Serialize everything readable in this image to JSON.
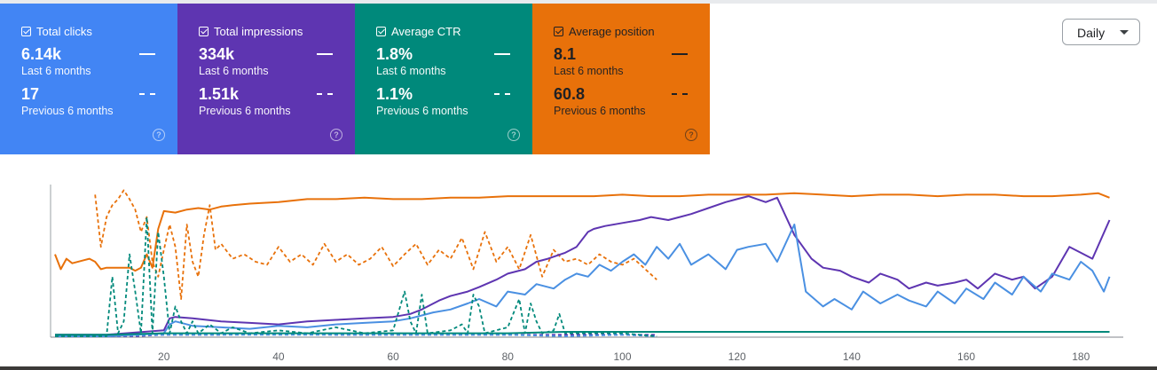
{
  "metrics": [
    {
      "id": "clicks",
      "title": "Total clicks",
      "current": "6.14k",
      "current_label": "Last 6 months",
      "previous": "17",
      "previous_label": "Previous 6 months",
      "color": "#4285f4",
      "line_color": "#4a90e2",
      "text": "light",
      "checked": true
    },
    {
      "id": "impressions",
      "title": "Total impressions",
      "current": "334k",
      "current_label": "Last 6 months",
      "previous": "1.51k",
      "previous_label": "Previous 6 months",
      "color": "#5e35b1",
      "line_color": "#5e35b1",
      "text": "light",
      "checked": true
    },
    {
      "id": "ctr",
      "title": "Average CTR",
      "current": "1.8%",
      "current_label": "Last 6 months",
      "previous": "1.1%",
      "previous_label": "Previous 6 months",
      "color": "#00897b",
      "line_color": "#00897b",
      "text": "light",
      "checked": true
    },
    {
      "id": "position",
      "title": "Average position",
      "current": "8.1",
      "current_label": "Last 6 months",
      "previous": "60.8",
      "previous_label": "Previous 6 months",
      "color": "#e8710a",
      "line_color": "#e8710a",
      "text": "dark",
      "checked": true
    }
  ],
  "help_glyph": "?",
  "granularity": {
    "selected": "Daily"
  },
  "chart_data": {
    "type": "line",
    "x_ticks": [
      20,
      40,
      60,
      80,
      100,
      120,
      140,
      160,
      180
    ],
    "xlim": [
      1,
      186
    ],
    "ylim": [
      0,
      100
    ],
    "y_scale": "relative (per-metric normalized, no y-axis labels shown)",
    "grid": false,
    "series": [
      {
        "name": "Average position",
        "metric": "position",
        "style": "solid",
        "color": "#e8710a",
        "x": [
          1,
          2,
          3,
          4,
          6,
          7,
          8,
          9,
          10,
          12,
          14,
          15,
          16,
          17,
          18,
          19,
          20,
          22,
          24,
          26,
          28,
          30,
          32,
          35,
          40,
          45,
          50,
          55,
          60,
          65,
          70,
          75,
          80,
          85,
          90,
          95,
          100,
          105,
          110,
          115,
          120,
          125,
          130,
          135,
          140,
          145,
          150,
          155,
          160,
          165,
          170,
          175,
          180,
          183,
          185
        ],
        "y": [
          55,
          45,
          52,
          49,
          51,
          52,
          50,
          45,
          46,
          46,
          46,
          44,
          46,
          55,
          46,
          72,
          84,
          83,
          85,
          86,
          85,
          87,
          88,
          89,
          90,
          92,
          92,
          93,
          92,
          92,
          93,
          93,
          94,
          94,
          94,
          94,
          95,
          94,
          94,
          95,
          95,
          95,
          96,
          95,
          94,
          95,
          95,
          94,
          95,
          95,
          94,
          94,
          95,
          96,
          93
        ]
      },
      {
        "name": "Average position (previous)",
        "metric": "position",
        "style": "dashed",
        "color": "#e8710a",
        "x": [
          8,
          9,
          10,
          11,
          12,
          13,
          14,
          15,
          16,
          17,
          18,
          19,
          20,
          21,
          22,
          23,
          24,
          25,
          26,
          27,
          28,
          29,
          30,
          32,
          34,
          36,
          38,
          40,
          42,
          44,
          46,
          48,
          50,
          52,
          54,
          56,
          58,
          60,
          62,
          64,
          66,
          68,
          70,
          72,
          74,
          76,
          78,
          80,
          82,
          84,
          86,
          88,
          90,
          92,
          94,
          96,
          98,
          100,
          102,
          104,
          106
        ],
        "y": [
          95,
          60,
          80,
          88,
          92,
          98,
          92,
          85,
          70,
          80,
          50,
          40,
          58,
          75,
          60,
          25,
          75,
          50,
          40,
          68,
          88,
          58,
          62,
          52,
          55,
          50,
          48,
          60,
          50,
          55,
          48,
          62,
          50,
          55,
          48,
          52,
          60,
          47,
          55,
          62,
          48,
          58,
          52,
          66,
          45,
          70,
          50,
          60,
          45,
          68,
          40,
          58,
          50,
          52,
          48,
          55,
          50,
          48,
          52,
          45,
          38
        ]
      },
      {
        "name": "Total impressions",
        "metric": "impressions",
        "style": "solid",
        "color": "#5e35b1",
        "x": [
          1,
          10,
          20,
          21,
          22,
          25,
          30,
          35,
          40,
          45,
          50,
          55,
          60,
          63,
          65,
          68,
          70,
          73,
          75,
          78,
          80,
          83,
          85,
          87,
          90,
          92,
          94,
          95,
          97,
          100,
          103,
          105,
          108,
          110,
          112,
          115,
          118,
          120,
          122,
          125,
          127,
          130,
          133,
          135,
          138,
          140,
          143,
          145,
          148,
          150,
          153,
          155,
          158,
          160,
          162,
          165,
          168,
          170,
          172,
          175,
          178,
          180,
          182,
          185
        ],
        "y": [
          1,
          1,
          4,
          12,
          13,
          12,
          10,
          9,
          8,
          10,
          11,
          12,
          13,
          15,
          18,
          24,
          27,
          30,
          33,
          38,
          42,
          45,
          50,
          52,
          56,
          60,
          70,
          72,
          74,
          76,
          78,
          80,
          78,
          80,
          82,
          86,
          90,
          92,
          94,
          90,
          93,
          68,
          52,
          46,
          44,
          40,
          36,
          42,
          38,
          32,
          36,
          34,
          36,
          38,
          32,
          42,
          38,
          40,
          32,
          40,
          60,
          56,
          52,
          78
        ]
      },
      {
        "name": "Total clicks",
        "metric": "clicks",
        "style": "solid",
        "color": "#4a90e2",
        "x": [
          1,
          10,
          20,
          21,
          22,
          25,
          30,
          35,
          40,
          45,
          50,
          55,
          60,
          63,
          65,
          67,
          70,
          73,
          75,
          78,
          80,
          83,
          85,
          88,
          90,
          92,
          94,
          96,
          98,
          100,
          102,
          104,
          106,
          108,
          110,
          112,
          115,
          118,
          120,
          122,
          125,
          127,
          130,
          132,
          135,
          137,
          140,
          142,
          145,
          148,
          150,
          153,
          155,
          158,
          160,
          163,
          165,
          168,
          170,
          173,
          175,
          178,
          180,
          182,
          184,
          185
        ],
        "y": [
          0,
          0,
          2,
          8,
          10,
          7,
          6,
          5,
          7,
          6,
          8,
          9,
          10,
          12,
          14,
          16,
          18,
          22,
          25,
          20,
          30,
          28,
          35,
          32,
          38,
          42,
          40,
          48,
          44,
          50,
          55,
          48,
          60,
          52,
          62,
          48,
          55,
          45,
          58,
          60,
          62,
          50,
          75,
          30,
          20,
          25,
          18,
          30,
          22,
          28,
          24,
          20,
          30,
          22,
          32,
          25,
          36,
          28,
          40,
          30,
          42,
          38,
          50,
          44,
          30,
          40
        ]
      },
      {
        "name": "Total impressions (previous)",
        "metric": "impressions",
        "style": "dashed",
        "color": "#5e35b1",
        "x": [
          1,
          15,
          20,
          30,
          40,
          50,
          60,
          70,
          80,
          90,
          100,
          106
        ],
        "y": [
          0,
          0,
          1,
          1,
          2,
          1,
          1,
          1,
          1,
          1,
          1,
          1
        ]
      },
      {
        "name": "Total clicks (previous)",
        "metric": "clicks",
        "style": "dashed",
        "color": "#4a90e2",
        "x": [
          1,
          10,
          20,
          30,
          40,
          50,
          60,
          70,
          80,
          90,
          100,
          106
        ],
        "y": [
          0,
          0,
          1,
          1,
          1,
          1,
          1,
          1,
          1,
          0,
          1,
          0
        ]
      },
      {
        "name": "Average CTR (previous)",
        "metric": "ctr",
        "style": "dashed",
        "color": "#00897b",
        "x": [
          1,
          10,
          11,
          12,
          13,
          14,
          15,
          16,
          17,
          18,
          19,
          20,
          21,
          22,
          23,
          24,
          25,
          26,
          28,
          30,
          32,
          35,
          40,
          45,
          50,
          55,
          60,
          62,
          63,
          64,
          65,
          66,
          70,
          72,
          73,
          74,
          75,
          76,
          80,
          82,
          83,
          84,
          85,
          86,
          88,
          89,
          90,
          95,
          100,
          106
        ],
        "y": [
          0,
          0,
          40,
          2,
          10,
          55,
          30,
          2,
          80,
          2,
          70,
          40,
          2,
          20,
          10,
          2,
          10,
          2,
          8,
          2,
          6,
          2,
          4,
          2,
          6,
          2,
          4,
          30,
          10,
          2,
          28,
          2,
          4,
          8,
          2,
          28,
          20,
          2,
          6,
          25,
          2,
          22,
          10,
          2,
          4,
          15,
          2,
          2,
          2,
          0
        ]
      },
      {
        "name": "Average CTR",
        "metric": "ctr",
        "style": "solid",
        "color": "#00897b",
        "x": [
          1,
          10,
          20,
          30,
          40,
          50,
          60,
          70,
          80,
          90,
          100,
          110,
          120,
          130,
          140,
          150,
          160,
          170,
          180,
          185
        ],
        "y": [
          1,
          1,
          2,
          2,
          2,
          2,
          2,
          2,
          2,
          3,
          3,
          3,
          3,
          3,
          3,
          3,
          3,
          3,
          3,
          3
        ]
      }
    ]
  }
}
